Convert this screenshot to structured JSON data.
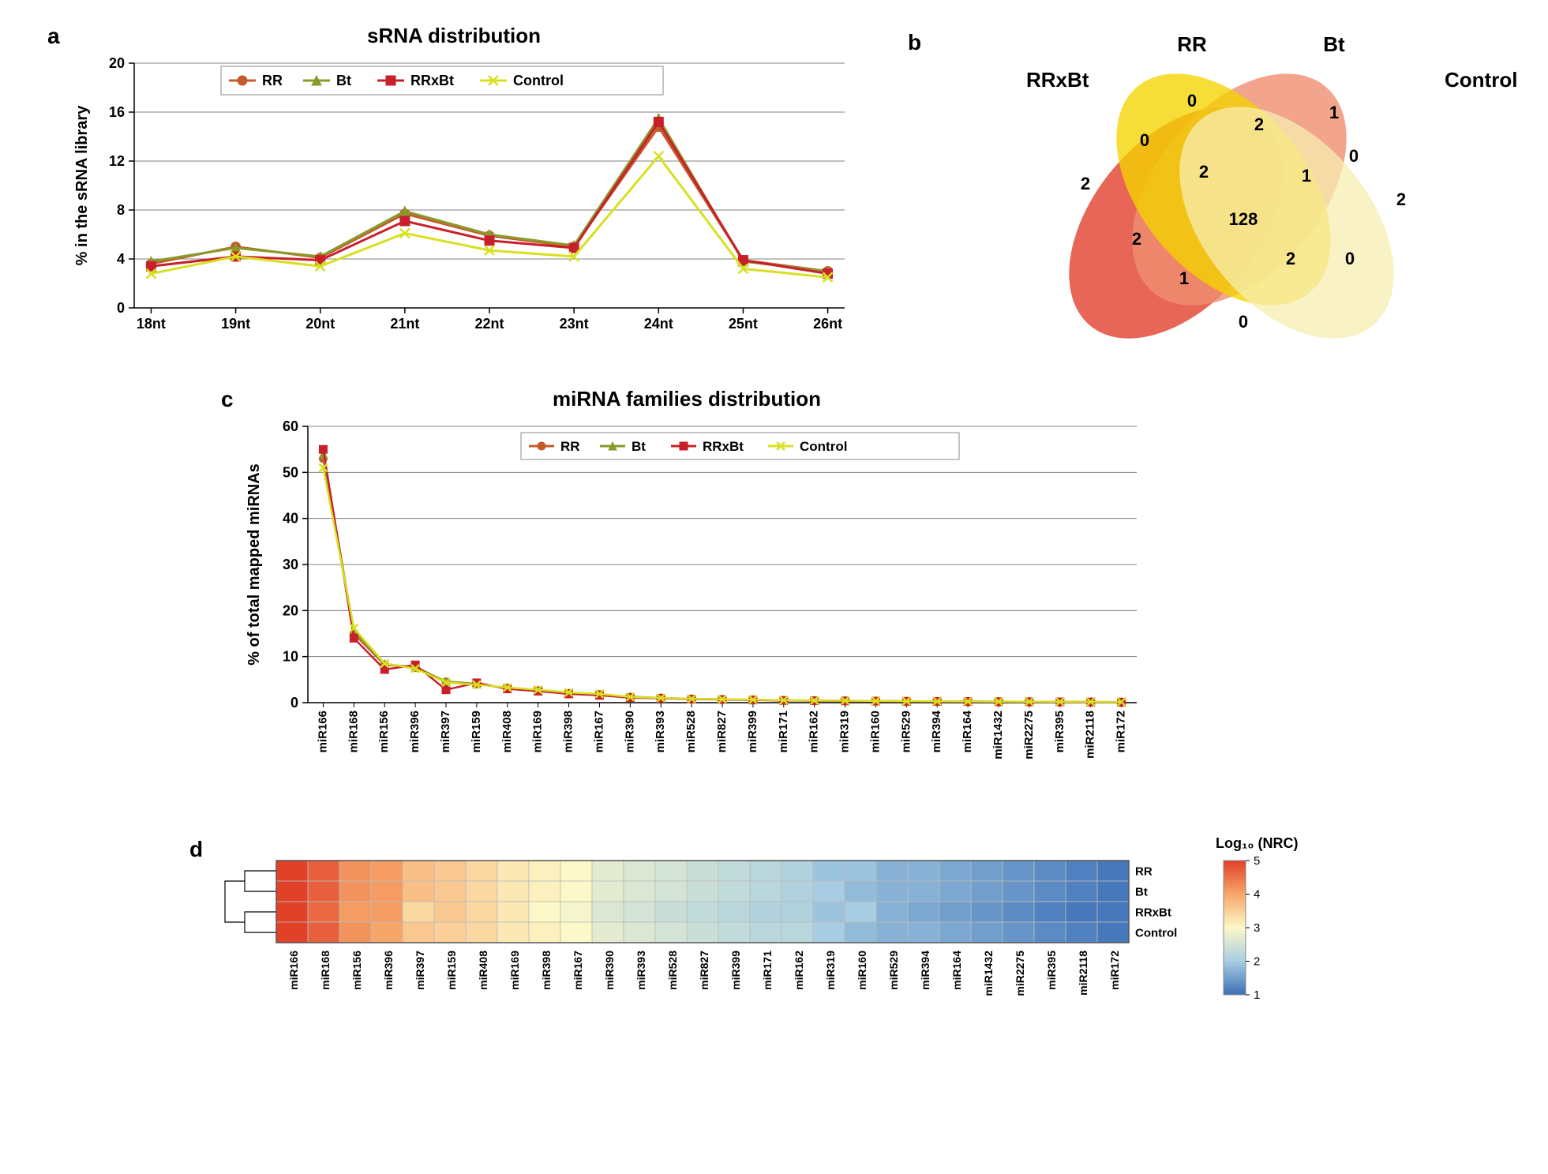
{
  "panelA": {
    "label": "a",
    "title": "sRNA distribution",
    "ylabel": "% in the sRNA library",
    "categories": [
      "18nt",
      "19nt",
      "20nt",
      "21nt",
      "22nt",
      "23nt",
      "24nt",
      "25nt",
      "26nt"
    ],
    "ylim": [
      0,
      20
    ],
    "ytick_step": 4,
    "series": [
      {
        "name": "RR",
        "color": "#c55a2b",
        "marker": "circle",
        "values": [
          3.6,
          5.0,
          4.1,
          7.7,
          5.9,
          5.0,
          14.8,
          3.9,
          3.0
        ]
      },
      {
        "name": "Bt",
        "color": "#8a9a2a",
        "marker": "triangle",
        "values": [
          3.8,
          4.9,
          4.2,
          7.9,
          6.0,
          5.1,
          15.5,
          3.8,
          3.0
        ]
      },
      {
        "name": "RRxBt",
        "color": "#c8202a",
        "marker": "square",
        "values": [
          3.4,
          4.2,
          3.9,
          7.1,
          5.5,
          4.9,
          15.2,
          3.9,
          2.8
        ]
      },
      {
        "name": "Control",
        "color": "#d7e022",
        "marker": "x",
        "values": [
          2.8,
          4.2,
          3.4,
          6.1,
          4.7,
          4.2,
          12.4,
          3.2,
          2.5
        ]
      }
    ],
    "background": "#ffffff",
    "gridline_color": "#808080"
  },
  "panelB": {
    "label": "b",
    "sets": [
      {
        "name": "RRxBt",
        "color": "#e34b3a",
        "label_color": "#000"
      },
      {
        "name": "RR",
        "color": "#ef8e6f",
        "label_color": "#000"
      },
      {
        "name": "Bt",
        "color": "#f5d400",
        "label_color": "#000"
      },
      {
        "name": "Control",
        "color": "#f7eeb0",
        "label_color": "#000"
      }
    ],
    "counts": {
      "RRxBt_only": "2",
      "RR_only": "0",
      "Bt_only": "1",
      "Control_only": "2",
      "RRxBt_RR": "0",
      "RR_Bt": "2",
      "Bt_Control": "0",
      "RRxBt_Control": "0",
      "RRxBt_RR_Bt": "2",
      "RR_Bt_Control": "1",
      "RRxBt_Bt": "2",
      "RR_Control": "0",
      "RRxBt_Bt_Control": "1",
      "RRxBt_RR_Control": "2",
      "all": "128"
    }
  },
  "panelC": {
    "label": "c",
    "title": "miRNA families distribution",
    "ylabel": "% of total mapped miRNAs",
    "categories": [
      "miR166",
      "miR168",
      "miR156",
      "miR396",
      "miR397",
      "miR159",
      "miR408",
      "miR169",
      "miR398",
      "miR167",
      "miR390",
      "miR393",
      "miR528",
      "miR827",
      "miR399",
      "miR171",
      "miR162",
      "miR319",
      "miR160",
      "miR529",
      "miR394",
      "miR164",
      "miR1432",
      "miR2275",
      "miR395",
      "miR2118",
      "miR172"
    ],
    "ylim": [
      0,
      60
    ],
    "ytick_step": 10,
    "series": [
      {
        "name": "RR",
        "color": "#c55a2b",
        "marker": "circle",
        "values": [
          53,
          15,
          8.2,
          7.8,
          4.5,
          4.0,
          3.2,
          2.6,
          2.0,
          1.8,
          1.2,
          1.0,
          0.8,
          0.7,
          0.6,
          0.5,
          0.45,
          0.4,
          0.35,
          0.3,
          0.28,
          0.25,
          0.22,
          0.2,
          0.18,
          0.15,
          0.12
        ]
      },
      {
        "name": "Bt",
        "color": "#8a9a2a",
        "marker": "triangle",
        "values": [
          54,
          15.5,
          8.4,
          7.6,
          4.6,
          4.1,
          3.1,
          2.7,
          2.1,
          1.7,
          1.3,
          1.05,
          0.82,
          0.72,
          0.62,
          0.52,
          0.46,
          0.41,
          0.36,
          0.31,
          0.29,
          0.26,
          0.23,
          0.21,
          0.19,
          0.16,
          0.13
        ]
      },
      {
        "name": "RRxBt",
        "color": "#c8202a",
        "marker": "square",
        "values": [
          55,
          14,
          7.2,
          8.2,
          2.8,
          4.3,
          3.0,
          2.5,
          1.9,
          1.6,
          1.1,
          0.95,
          0.78,
          0.68,
          0.58,
          0.48,
          0.43,
          0.38,
          0.33,
          0.29,
          0.27,
          0.24,
          0.21,
          0.19,
          0.17,
          0.14,
          0.11
        ]
      },
      {
        "name": "Control",
        "color": "#d7e022",
        "marker": "x",
        "values": [
          51,
          16.2,
          8.5,
          7.4,
          4.4,
          3.9,
          3.3,
          2.8,
          2.2,
          1.9,
          1.25,
          1.02,
          0.84,
          0.74,
          0.64,
          0.54,
          0.48,
          0.42,
          0.37,
          0.32,
          0.3,
          0.27,
          0.24,
          0.22,
          0.2,
          0.17,
          0.14
        ]
      }
    ]
  },
  "panelD": {
    "label": "d",
    "row_labels": [
      "RR",
      "Bt",
      "RRxBt",
      "Control"
    ],
    "col_labels": [
      "miR166",
      "miR168",
      "miR156",
      "miR396",
      "miR397",
      "miR159",
      "miR408",
      "miR169",
      "miR398",
      "miR167",
      "miR390",
      "miR393",
      "miR528",
      "miR827",
      "miR399",
      "miR171",
      "miR162",
      "miR319",
      "miR160",
      "miR529",
      "miR394",
      "miR164",
      "miR1432",
      "miR2275",
      "miR395",
      "miR2118",
      "miR172"
    ],
    "colorbar_title": "Log₁₀ (NRC)",
    "colorbar_min": 1,
    "colorbar_max": 5,
    "color_stops": [
      {
        "v": 1,
        "c": "#3b6fb6"
      },
      {
        "v": 2,
        "c": "#a8cde2"
      },
      {
        "v": 3,
        "c": "#fdf8c8"
      },
      {
        "v": 4,
        "c": "#f7a66a"
      },
      {
        "v": 5,
        "c": "#e04128"
      }
    ],
    "data": [
      [
        5.2,
        4.7,
        4.2,
        4.1,
        3.7,
        3.6,
        3.4,
        3.2,
        3.1,
        3.0,
        2.7,
        2.6,
        2.5,
        2.4,
        2.3,
        2.2,
        2.1,
        1.9,
        1.9,
        1.7,
        1.7,
        1.6,
        1.5,
        1.4,
        1.3,
        1.2,
        1.1
      ],
      [
        5.2,
        4.7,
        4.2,
        4.1,
        3.7,
        3.6,
        3.4,
        3.2,
        3.1,
        3.0,
        2.7,
        2.6,
        2.5,
        2.4,
        2.3,
        2.2,
        2.1,
        2.0,
        1.8,
        1.7,
        1.7,
        1.6,
        1.5,
        1.4,
        1.3,
        1.2,
        1.1
      ],
      [
        5.2,
        4.6,
        4.1,
        4.1,
        3.4,
        3.6,
        3.4,
        3.2,
        3.0,
        2.9,
        2.6,
        2.5,
        2.4,
        2.3,
        2.2,
        2.1,
        2.1,
        1.9,
        2.0,
        1.7,
        1.6,
        1.5,
        1.4,
        1.3,
        1.2,
        1.1,
        1.1
      ],
      [
        5.2,
        4.7,
        4.2,
        4.0,
        3.6,
        3.5,
        3.4,
        3.2,
        3.1,
        3.0,
        2.7,
        2.6,
        2.5,
        2.4,
        2.3,
        2.2,
        2.2,
        2.0,
        1.8,
        1.7,
        1.7,
        1.6,
        1.5,
        1.4,
        1.3,
        1.2,
        1.1
      ]
    ]
  }
}
